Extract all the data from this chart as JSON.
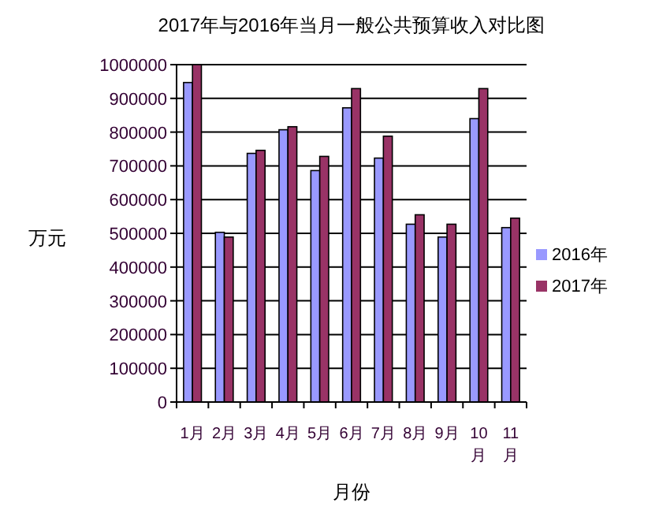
{
  "chart_data": {
    "type": "bar",
    "title": "2017年与2016年当月一般公共预算收入对比图",
    "xlabel": "月份",
    "ylabel": "万元",
    "categories": [
      "1月",
      "2月",
      "3月",
      "4月",
      "5月",
      "6月",
      "7月",
      "8月",
      "9月",
      "10月",
      "11月"
    ],
    "series": [
      {
        "name": "2016年",
        "color": "#9999ff",
        "values": [
          947000,
          503000,
          737000,
          807000,
          686000,
          872000,
          723000,
          527000,
          489000,
          840000,
          517000
        ]
      },
      {
        "name": "2017年",
        "color": "#993366",
        "values": [
          1000000,
          489000,
          746000,
          816000,
          728000,
          929000,
          788000,
          555000,
          527000,
          929000,
          545000
        ]
      }
    ],
    "ylim": [
      0,
      1000000
    ],
    "yticks": [
      0,
      100000,
      200000,
      300000,
      400000,
      500000,
      600000,
      700000,
      800000,
      900000,
      1000000
    ],
    "grid": "y",
    "legend": "right"
  }
}
